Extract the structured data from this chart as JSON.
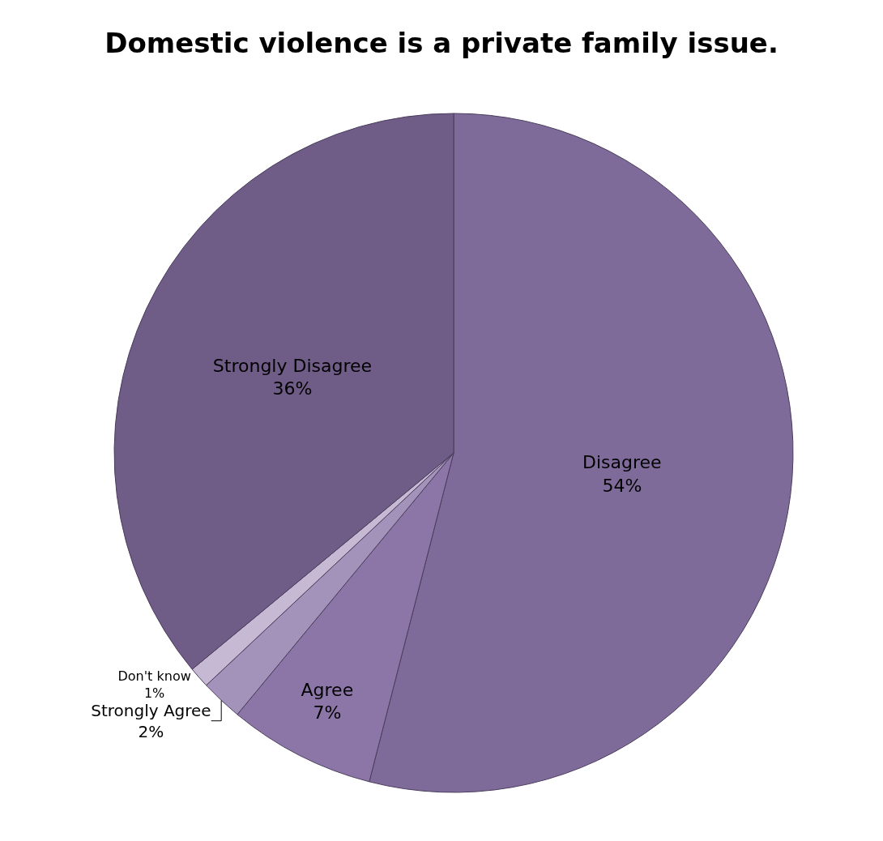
{
  "chart_data": {
    "type": "pie",
    "title": "Domestic violence is a private family issue.",
    "categories": [
      "Disagree",
      "Agree",
      "Strongly Agree",
      "Don't know",
      "Strongly Disagree"
    ],
    "values": [
      54,
      7,
      2,
      1,
      36
    ],
    "value_labels": [
      "54%",
      "7%",
      "2%",
      "1%",
      "36%"
    ],
    "colors": [
      "#7f6b9a",
      "#8c76a8",
      "#a393bb",
      "#c5b9d4",
      "#6f5c87"
    ],
    "legend": false
  }
}
